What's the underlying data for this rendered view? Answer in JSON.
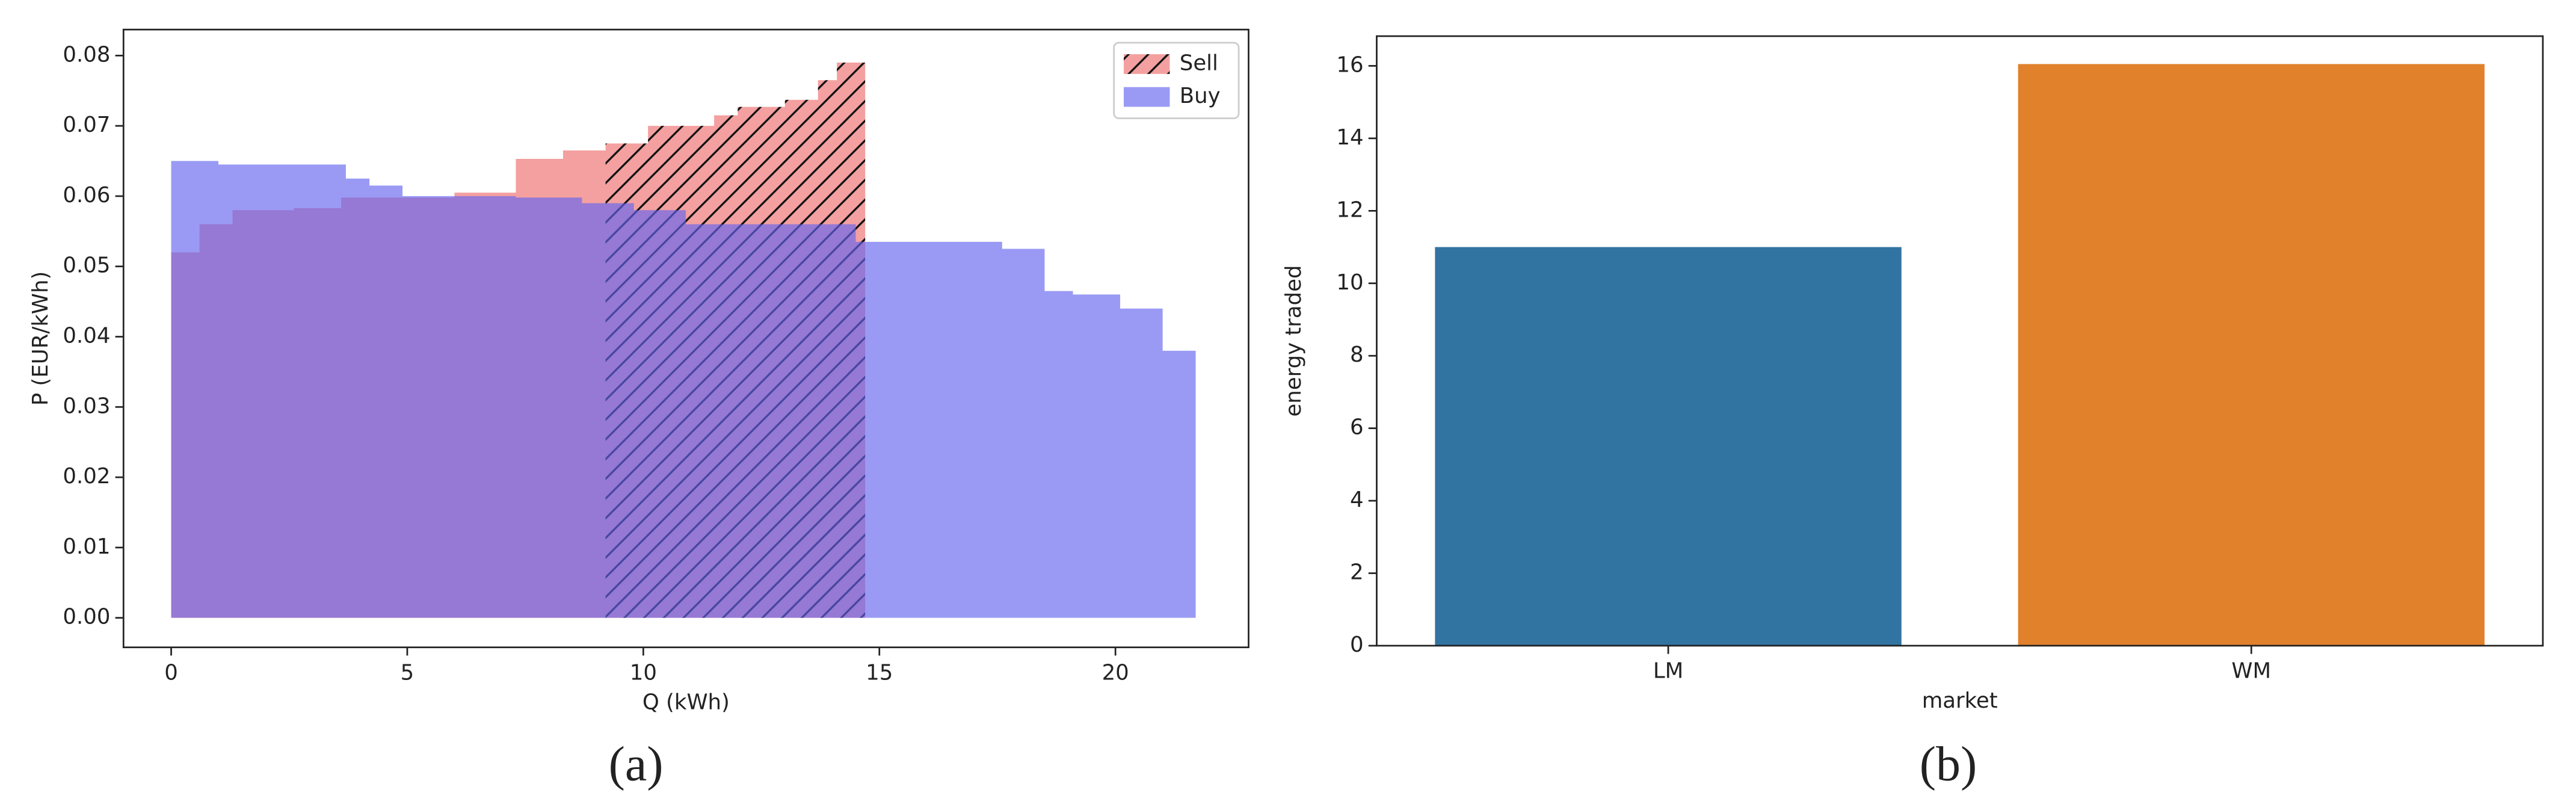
{
  "chart_data": [
    {
      "type": "step-area",
      "caption": "(a)",
      "xlabel": "Q (kWh)",
      "ylabel": "P (EUR/kWh)",
      "xlim": [
        -1.01,
        22.82
      ],
      "ylim": [
        -0.0042,
        0.0837
      ],
      "xticks": [
        0,
        5,
        10,
        15,
        20
      ],
      "yticks": [
        {
          "value": 0,
          "label": "0.00"
        },
        {
          "value": 0.01,
          "label": "0.01"
        },
        {
          "value": 0.02,
          "label": "0.02"
        },
        {
          "value": 0.03,
          "label": "0.03"
        },
        {
          "value": 0.04,
          "label": "0.04"
        },
        {
          "value": 0.05,
          "label": "0.05"
        },
        {
          "value": 0.06,
          "label": "0.06"
        },
        {
          "value": 0.07,
          "label": "0.07"
        },
        {
          "value": 0.08,
          "label": "0.08"
        }
      ],
      "legend": "upper right",
      "series": [
        {
          "name": "Sell",
          "color": "#f08080",
          "hatch": "/",
          "bins": [
            0,
            0.6,
            1.3,
            2.6,
            3.6,
            6.0,
            7.3,
            8.3,
            9.2,
            10.1,
            11.5,
            12.0,
            13.0,
            13.7,
            14.1,
            14.7
          ],
          "values": [
            0.052,
            0.056,
            0.058,
            0.0583,
            0.0598,
            0.0605,
            0.0653,
            0.0665,
            0.0675,
            0.07,
            0.0715,
            0.0727,
            0.0737,
            0.0765,
            0.079
          ],
          "hatch_ranges": [
            [
              9.2,
              14.7
            ]
          ]
        },
        {
          "name": "Buy",
          "color": "#6464f0",
          "hatch": "\\",
          "bins": [
            0,
            1.0,
            3.7,
            4.2,
            4.9,
            7.3,
            8.7,
            9.8,
            10.9,
            14.5,
            17.6,
            18.5,
            19.1,
            20.1,
            21.0,
            21.7
          ],
          "values": [
            0.065,
            0.0645,
            0.0625,
            0.0615,
            0.06,
            0.0598,
            0.059,
            0.058,
            0.056,
            0.0535,
            0.0525,
            0.0465,
            0.046,
            0.044,
            0.038
          ],
          "hatch_ranges": [
            [
              14.5,
              14.7
            ],
            [
              17.6,
              21.7
            ]
          ]
        }
      ]
    },
    {
      "type": "bar",
      "caption": "(b)",
      "xlabel": "market",
      "ylabel": "energy traded",
      "categories": [
        "LM",
        "WM"
      ],
      "values": [
        11.0,
        16.05
      ],
      "colors": [
        "#3274a1",
        "#e1812c"
      ],
      "ylim": [
        0,
        16.82
      ],
      "yticks": [
        0,
        2,
        4,
        6,
        8,
        10,
        12,
        14,
        16
      ]
    }
  ]
}
